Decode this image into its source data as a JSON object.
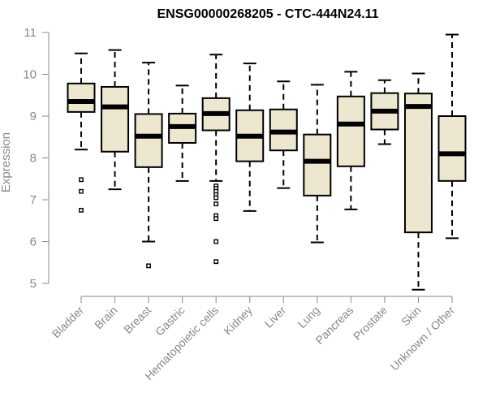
{
  "chart_data": {
    "type": "boxplot",
    "title": "ENSG00000268205 - CTC-444N24.11",
    "xlabel": "",
    "ylabel": "Expression",
    "ylim": [
      4.8,
      11.0
    ],
    "yticks": [
      5,
      6,
      7,
      8,
      9,
      10,
      11
    ],
    "colors": {
      "box_fill": "#ede7cf",
      "median": "#000000",
      "axis": "#888888",
      "text": "#888888"
    },
    "categories": [
      "Bladder",
      "Brain",
      "Breast",
      "Gastric",
      "Hematopoietic cells",
      "Kidney",
      "Liver",
      "Lung",
      "Pancreas",
      "Prostate",
      "Skin",
      "Unknown / Other"
    ],
    "boxes": [
      {
        "name": "Bladder",
        "min": 8.2,
        "q1": 9.1,
        "median": 9.35,
        "q3": 9.78,
        "max": 10.5,
        "outliers": [
          7.48,
          7.2,
          6.75
        ]
      },
      {
        "name": "Brain",
        "min": 7.25,
        "q1": 8.15,
        "median": 9.22,
        "q3": 9.7,
        "max": 10.58,
        "outliers": []
      },
      {
        "name": "Breast",
        "min": 6.0,
        "q1": 7.78,
        "median": 8.52,
        "q3": 9.05,
        "max": 10.28,
        "outliers": [
          5.42
        ]
      },
      {
        "name": "Gastric",
        "min": 7.45,
        "q1": 8.36,
        "median": 8.75,
        "q3": 9.06,
        "max": 9.73,
        "outliers": []
      },
      {
        "name": "Hematopoietic cells",
        "min": 7.45,
        "q1": 8.66,
        "median": 9.06,
        "q3": 9.43,
        "max": 10.47,
        "outliers": [
          7.33,
          7.27,
          7.2,
          7.12,
          7.05,
          6.9,
          6.62,
          6.55,
          6.0,
          5.52
        ]
      },
      {
        "name": "Kidney",
        "min": 6.73,
        "q1": 7.92,
        "median": 8.52,
        "q3": 9.14,
        "max": 10.26,
        "outliers": []
      },
      {
        "name": "Liver",
        "min": 7.28,
        "q1": 8.18,
        "median": 8.62,
        "q3": 9.16,
        "max": 9.83,
        "outliers": []
      },
      {
        "name": "Lung",
        "min": 5.98,
        "q1": 7.1,
        "median": 7.92,
        "q3": 8.56,
        "max": 9.75,
        "outliers": []
      },
      {
        "name": "Pancreas",
        "min": 6.77,
        "q1": 7.8,
        "median": 8.81,
        "q3": 9.47,
        "max": 10.06,
        "outliers": []
      },
      {
        "name": "Prostate",
        "min": 8.33,
        "q1": 8.68,
        "median": 9.12,
        "q3": 9.55,
        "max": 9.86,
        "outliers": []
      },
      {
        "name": "Skin",
        "min": 4.85,
        "q1": 6.22,
        "median": 9.23,
        "q3": 9.54,
        "max": 10.02,
        "outliers": []
      },
      {
        "name": "Unknown / Other",
        "min": 6.08,
        "q1": 7.45,
        "median": 8.1,
        "q3": 9.0,
        "max": 10.95,
        "outliers": []
      }
    ]
  }
}
